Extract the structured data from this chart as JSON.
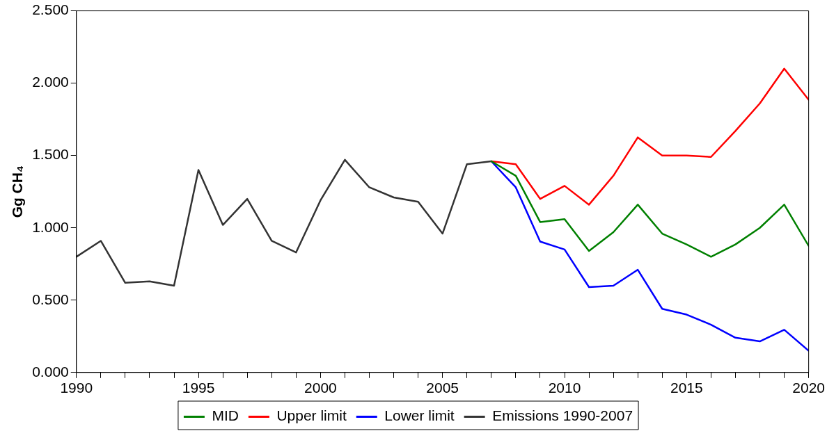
{
  "chart_data": {
    "type": "line",
    "ylabel": "Gg CH₄",
    "x": [
      1990,
      1991,
      1992,
      1993,
      1994,
      1995,
      1996,
      1997,
      1998,
      1999,
      2000,
      2001,
      2002,
      2003,
      2004,
      2005,
      2006,
      2007,
      2008,
      2009,
      2010,
      2011,
      2012,
      2013,
      2014,
      2015,
      2016,
      2017,
      2018,
      2019,
      2020
    ],
    "series": [
      {
        "name": "MID",
        "color": "#008000",
        "values": [
          null,
          null,
          null,
          null,
          null,
          null,
          null,
          null,
          null,
          null,
          null,
          null,
          null,
          null,
          null,
          null,
          null,
          1.46,
          1.36,
          1.04,
          1.06,
          0.84,
          0.97,
          1.16,
          0.96,
          0.885,
          0.8,
          0.885,
          1.0,
          1.16,
          0.875
        ]
      },
      {
        "name": "Upper limit",
        "color": "#ff0000",
        "values": [
          null,
          null,
          null,
          null,
          null,
          null,
          null,
          null,
          null,
          null,
          null,
          null,
          null,
          null,
          null,
          null,
          null,
          1.46,
          1.44,
          1.2,
          1.29,
          1.16,
          1.36,
          1.625,
          1.5,
          1.5,
          1.49,
          1.67,
          1.86,
          2.1,
          1.885
        ]
      },
      {
        "name": "Lower limit",
        "color": "#0000ff",
        "values": [
          null,
          null,
          null,
          null,
          null,
          null,
          null,
          null,
          null,
          null,
          null,
          null,
          null,
          null,
          null,
          null,
          null,
          1.46,
          1.28,
          0.905,
          0.85,
          0.59,
          0.6,
          0.71,
          0.44,
          0.4,
          0.33,
          0.24,
          0.215,
          0.295,
          0.15
        ]
      },
      {
        "name": "Emissions 1990-2007",
        "color": "#333333",
        "values": [
          0.8,
          0.91,
          0.62,
          0.63,
          0.6,
          1.4,
          1.02,
          1.2,
          0.91,
          0.83,
          1.19,
          1.47,
          1.28,
          1.21,
          1.18,
          0.96,
          1.44,
          1.46,
          null,
          null,
          null,
          null,
          null,
          null,
          null,
          null,
          null,
          null,
          null,
          null,
          null
        ]
      }
    ],
    "xlim": [
      1990,
      2020
    ],
    "xticks": [
      1990,
      {
        "value": 1991,
        "label": null
      },
      {
        "value": 1992,
        "label": null
      },
      {
        "value": 1993,
        "label": null
      },
      {
        "value": 1994,
        "label": null
      },
      1995,
      {
        "value": 1996,
        "label": null
      },
      {
        "value": 1997,
        "label": null
      },
      {
        "value": 1998,
        "label": null
      },
      {
        "value": 1999,
        "label": null
      },
      2000,
      {
        "value": 2001,
        "label": null
      },
      {
        "value": 2002,
        "label": null
      },
      {
        "value": 2003,
        "label": null
      },
      {
        "value": 2004,
        "label": null
      },
      2005,
      {
        "value": 2006,
        "label": null
      },
      {
        "value": 2007,
        "label": null
      },
      {
        "value": 2008,
        "label": null
      },
      {
        "value": 2009,
        "label": null
      },
      2010,
      {
        "value": 2011,
        "label": null
      },
      {
        "value": 2012,
        "label": null
      },
      {
        "value": 2013,
        "label": null
      },
      {
        "value": 2014,
        "label": null
      },
      2015,
      {
        "value": 2016,
        "label": null
      },
      {
        "value": 2017,
        "label": null
      },
      {
        "value": 2018,
        "label": null
      },
      {
        "value": 2019,
        "label": null
      },
      2020
    ],
    "ylim": [
      0,
      2.5
    ],
    "yticks": [
      {
        "value": 0,
        "label": "0.000"
      },
      {
        "value": 0.5,
        "label": "0.500"
      },
      {
        "value": 1,
        "label": "1.000"
      },
      {
        "value": 1.5,
        "label": "1.500"
      },
      {
        "value": 2,
        "label": "2.000"
      },
      {
        "value": 2.5,
        "label": "2.500"
      }
    ],
    "grid": false,
    "legend": "bottom",
    "marker": "none",
    "line_style": "solid"
  }
}
